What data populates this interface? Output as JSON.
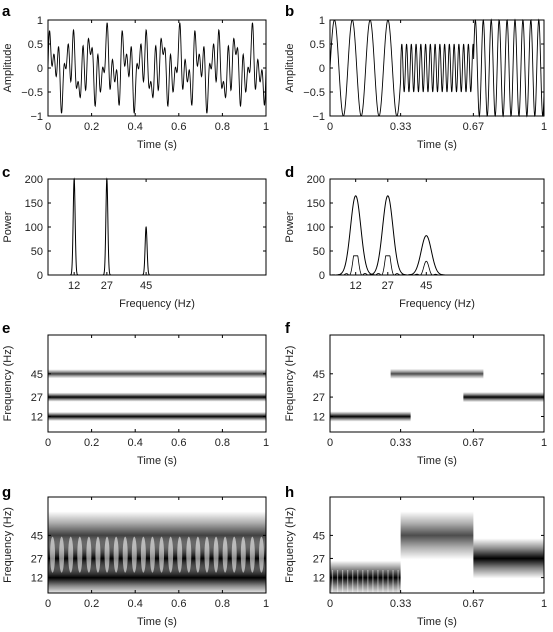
{
  "chart_data": [
    {
      "id": "a",
      "panel_label": "a",
      "type": "line",
      "title": "",
      "xlabel": "Time (s)",
      "ylabel": "Amplitude",
      "xlim": [
        0,
        1
      ],
      "ylim": [
        -1,
        1
      ],
      "xticks": [
        0,
        0.2,
        0.4,
        0.6,
        0.8,
        1
      ],
      "xtick_labels": [
        "0",
        "0.2",
        "0.4",
        "0.6",
        "0.8",
        "1"
      ],
      "yticks": [
        -1,
        -0.5,
        0,
        0.5,
        1
      ],
      "ytick_labels": [
        "−1",
        "−0.5",
        "0",
        "0.5",
        "1"
      ],
      "grid": false,
      "signal": {
        "kind": "sum",
        "components": [
          {
            "frequency_hz": 12,
            "amplitude": 0.33
          },
          {
            "frequency_hz": 27,
            "amplitude": 0.33
          },
          {
            "frequency_hz": 45,
            "amplitude": 0.33
          }
        ]
      }
    },
    {
      "id": "b",
      "panel_label": "b",
      "type": "line",
      "title": "",
      "xlabel": "Time (s)",
      "ylabel": "Amplitude",
      "xlim": [
        0,
        1
      ],
      "ylim": [
        -1,
        1
      ],
      "xticks": [
        0,
        0.33,
        0.67,
        1
      ],
      "xtick_labels": [
        "0",
        "0.33",
        "0.67",
        "1"
      ],
      "yticks": [
        -1,
        -0.5,
        0,
        0.5,
        1
      ],
      "ytick_labels": [
        "−1",
        "−0.5",
        "0",
        "0.5",
        "1"
      ],
      "grid": false,
      "signal": {
        "kind": "piecewise",
        "segments": [
          {
            "t_start": 0,
            "t_end": 0.33,
            "frequency_hz": 12,
            "amplitude": 1
          },
          {
            "t_start": 0.33,
            "t_end": 0.67,
            "frequency_hz": 45,
            "amplitude": 0.5
          },
          {
            "t_start": 0.67,
            "t_end": 1,
            "frequency_hz": 27,
            "amplitude": 1
          }
        ]
      }
    },
    {
      "id": "c",
      "panel_label": "c",
      "type": "line",
      "title": "",
      "xlabel": "Frequency (Hz)",
      "ylabel": "Power",
      "xlim": [
        0,
        100
      ],
      "ylim": [
        0,
        200
      ],
      "xticks": [
        12,
        27,
        45
      ],
      "xtick_labels": [
        "12",
        "27",
        "45"
      ],
      "yticks": [
        0,
        50,
        100,
        150,
        200
      ],
      "ytick_labels": [
        "0",
        "50",
        "100",
        "150",
        "200"
      ],
      "grid": false,
      "peaks": [
        {
          "frequency_hz": 12,
          "power": 200
        },
        {
          "frequency_hz": 27,
          "power": 200
        },
        {
          "frequency_hz": 45,
          "power": 100
        }
      ]
    },
    {
      "id": "d",
      "panel_label": "d",
      "type": "line",
      "title": "",
      "xlabel": "Frequency (Hz)",
      "ylabel": "Power",
      "xlim": [
        0,
        100
      ],
      "ylim": [
        0,
        200
      ],
      "xticks": [
        12,
        27,
        45
      ],
      "xtick_labels": [
        "12",
        "27",
        "45"
      ],
      "yticks": [
        0,
        50,
        100,
        150,
        200
      ],
      "ytick_labels": [
        "0",
        "50",
        "100",
        "150",
        "200"
      ],
      "grid": false,
      "peaks": [
        {
          "frequency_hz": 12,
          "power": 165
        },
        {
          "frequency_hz": 27,
          "power": 165
        },
        {
          "frequency_hz": 45,
          "power": 82
        }
      ]
    },
    {
      "id": "e",
      "panel_label": "e",
      "type": "heatmap",
      "title": "",
      "xlabel": "Time (s)",
      "ylabel": "Frequency (Hz)",
      "xlim": [
        0,
        1
      ],
      "ylim": [
        0,
        75
      ],
      "xticks": [
        0,
        0.2,
        0.4,
        0.6,
        0.8,
        1
      ],
      "xtick_labels": [
        "0",
        "0.2",
        "0.4",
        "0.6",
        "0.8",
        "1"
      ],
      "yticks": [
        12,
        27,
        45
      ],
      "ytick_labels": [
        "12",
        "27",
        "45"
      ],
      "grid": false,
      "bands": [
        {
          "frequency_hz": 12,
          "t_start": 0,
          "t_end": 1,
          "intensity": 1
        },
        {
          "frequency_hz": 27,
          "t_start": 0,
          "t_end": 1,
          "intensity": 1
        },
        {
          "frequency_hz": 45,
          "t_start": 0,
          "t_end": 1,
          "intensity": 0.75
        }
      ]
    },
    {
      "id": "f",
      "panel_label": "f",
      "type": "heatmap",
      "title": "",
      "xlabel": "Time (s)",
      "ylabel": "Frequency (Hz)",
      "xlim": [
        0,
        1
      ],
      "ylim": [
        0,
        75
      ],
      "xticks": [
        0,
        0.33,
        0.67,
        1
      ],
      "xtick_labels": [
        "0",
        "0.33",
        "0.67",
        "1"
      ],
      "yticks": [
        12,
        27,
        45
      ],
      "ytick_labels": [
        "12",
        "27",
        "45"
      ],
      "grid": false,
      "bands": [
        {
          "frequency_hz": 12,
          "t_start": 0,
          "t_end": 0.33,
          "intensity": 1
        },
        {
          "frequency_hz": 45,
          "t_start": 0.33,
          "t_end": 0.67,
          "intensity": 0.7
        },
        {
          "frequency_hz": 27,
          "t_start": 0.67,
          "t_end": 1,
          "intensity": 1
        }
      ]
    },
    {
      "id": "g",
      "panel_label": "g",
      "type": "heatmap",
      "title": "",
      "xlabel": "Time (s)",
      "ylabel": "Frequency (Hz)",
      "xlim": [
        0,
        1
      ],
      "ylim": [
        0,
        75
      ],
      "xticks": [
        0,
        0.2,
        0.4,
        0.6,
        0.8,
        1
      ],
      "xtick_labels": [
        "0",
        "0.2",
        "0.4",
        "0.6",
        "0.8",
        "1"
      ],
      "yticks": [
        12,
        27,
        45
      ],
      "ytick_labels": [
        "12",
        "27",
        "45"
      ],
      "grid": false,
      "bands": [
        {
          "frequency_hz": 12,
          "t_start": 0,
          "t_end": 1,
          "intensity": 1
        },
        {
          "frequency_hz": 27,
          "t_start": 0,
          "t_end": 1,
          "intensity": 1
        },
        {
          "frequency_hz": 45,
          "t_start": 0,
          "t_end": 1,
          "intensity": 0.75
        }
      ]
    },
    {
      "id": "h",
      "panel_label": "h",
      "type": "heatmap",
      "title": "",
      "xlabel": "Time (s)",
      "ylabel": "Frequency (Hz)",
      "xlim": [
        0,
        1
      ],
      "ylim": [
        0,
        75
      ],
      "xticks": [
        0,
        0.33,
        0.67,
        1
      ],
      "xtick_labels": [
        "0",
        "0.33",
        "0.67",
        "1"
      ],
      "yticks": [
        12,
        27,
        45
      ],
      "ytick_labels": [
        "12",
        "27",
        "45"
      ],
      "grid": false,
      "bands": [
        {
          "frequency_hz": 12,
          "t_start": 0,
          "t_end": 0.33,
          "intensity": 1
        },
        {
          "frequency_hz": 45,
          "t_start": 0.33,
          "t_end": 0.67,
          "intensity": 0.7
        },
        {
          "frequency_hz": 27,
          "t_start": 0.67,
          "t_end": 1,
          "intensity": 1
        }
      ]
    }
  ]
}
